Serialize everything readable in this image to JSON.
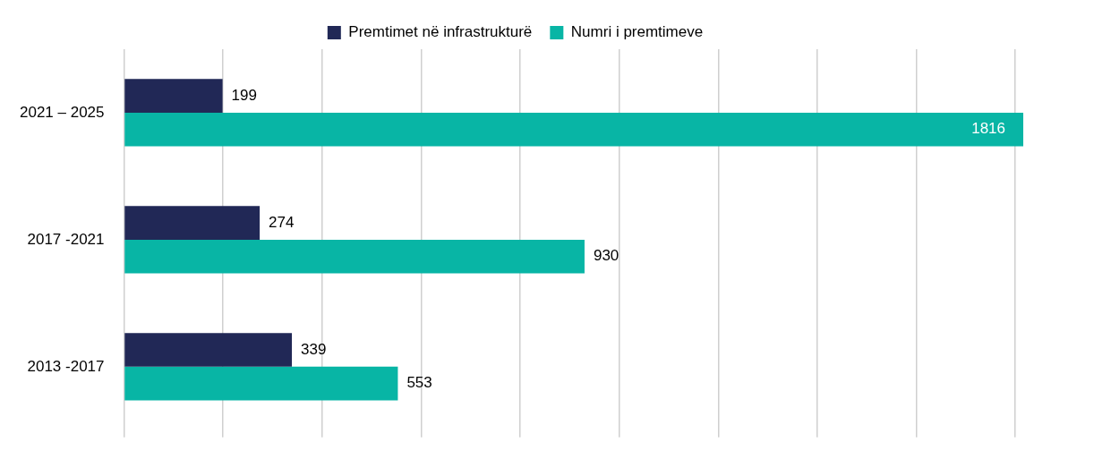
{
  "chart_data": {
    "type": "bar",
    "orientation": "horizontal",
    "categories": [
      "2021 – 2025",
      "2017 -2021",
      "2013 -2017"
    ],
    "series": [
      {
        "name": "Premtimet në infrastrukturë",
        "color": "#212856",
        "values": [
          199,
          274,
          339
        ]
      },
      {
        "name": "Numri i premtimeve",
        "color": "#08b5a5",
        "values": [
          1816,
          930,
          553
        ]
      }
    ],
    "xticks": [
      {
        "value": 0,
        "label": null
      },
      {
        "value": 200,
        "label": null
      },
      {
        "value": 400,
        "label": null
      },
      {
        "value": 600,
        "label": null
      },
      {
        "value": 800,
        "label": null
      },
      {
        "value": 1000,
        "label": null
      },
      {
        "value": 1200,
        "label": null
      },
      {
        "value": 1400,
        "label": null
      },
      {
        "value": 1600,
        "label": null
      },
      {
        "value": 1800,
        "label": null
      }
    ],
    "tick_labels": "y",
    "grid": "x",
    "legend": "top",
    "data_labels": true
  }
}
